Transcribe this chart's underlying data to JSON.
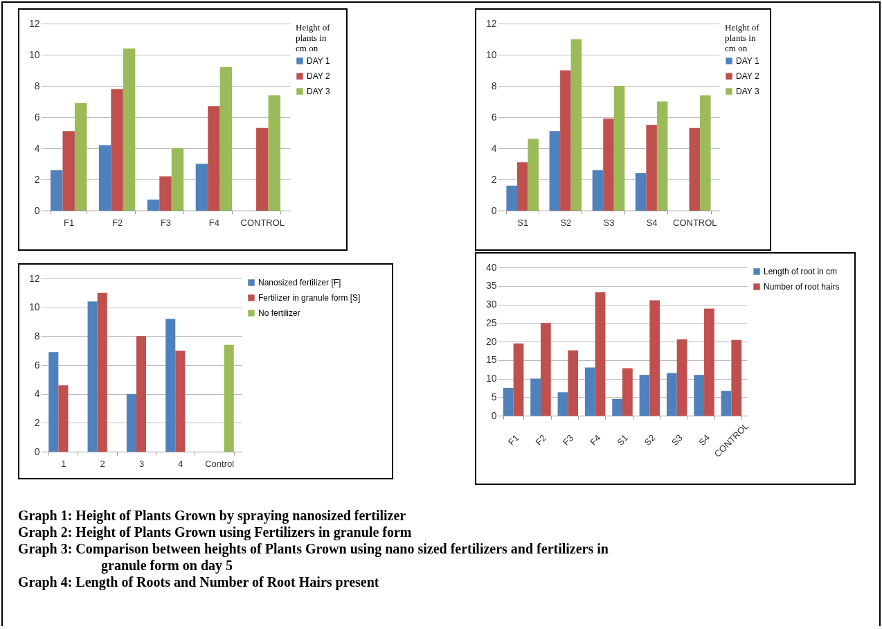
{
  "chart_data": [
    {
      "type": "bar",
      "categories": [
        "F1",
        "F2",
        "F3",
        "F4",
        "CONTROL"
      ],
      "legend_title": "Height of plants in cm on",
      "legend": "right",
      "grid": "y",
      "ylim": [
        0,
        12
      ],
      "yticks": [
        0,
        2,
        4,
        6,
        8,
        10,
        12
      ],
      "series": [
        {
          "name": "DAY 1",
          "color": "#4f81bd",
          "values": [
            2.6,
            4.2,
            0.7,
            3.0,
            null
          ]
        },
        {
          "name": "DAY 2",
          "color": "#c0504d",
          "values": [
            5.1,
            7.8,
            2.2,
            6.7,
            5.3
          ]
        },
        {
          "name": "DAY 3",
          "color": "#9bbb59",
          "values": [
            6.9,
            10.4,
            4.0,
            9.2,
            7.4
          ]
        }
      ],
      "annotations": [
        "Graph 1: Height of Plants Grown by spraying nanosized fertilizer"
      ]
    },
    {
      "type": "bar",
      "categories": [
        "S1",
        "S2",
        "S3",
        "S4",
        "CONTROL"
      ],
      "legend_title": "Height of plants in cm on",
      "legend": "right",
      "grid": "y",
      "ylim": [
        0,
        12
      ],
      "yticks": [
        0,
        2,
        4,
        6,
        8,
        10,
        12
      ],
      "series": [
        {
          "name": "DAY 1",
          "color": "#4f81bd",
          "values": [
            1.6,
            5.1,
            2.6,
            2.4,
            null
          ]
        },
        {
          "name": "DAY 2",
          "color": "#c0504d",
          "values": [
            3.1,
            9.0,
            5.9,
            5.5,
            5.3
          ]
        },
        {
          "name": "DAY 3",
          "color": "#9bbb59",
          "values": [
            4.6,
            11.0,
            8.0,
            7.0,
            7.4
          ]
        }
      ],
      "annotations": [
        "Graph 2: Height of Plants Grown using Fertilizers in granule form"
      ]
    },
    {
      "type": "bar",
      "categories": [
        "1",
        "2",
        "3",
        "4",
        "Control"
      ],
      "legend": "right",
      "grid": "y",
      "ylim": [
        0,
        12
      ],
      "yticks": [
        0,
        2,
        4,
        6,
        8,
        10,
        12
      ],
      "series": [
        {
          "name": "Nanosized fertilizer [F]",
          "color": "#4f81bd",
          "values": [
            6.9,
            10.4,
            4.0,
            9.2,
            null
          ]
        },
        {
          "name": "Fertilizer in granule form [S]",
          "color": "#c0504d",
          "values": [
            4.6,
            11.0,
            8.0,
            7.0,
            null
          ]
        },
        {
          "name": "No fertilizer",
          "color": "#9bbb59",
          "values": [
            null,
            null,
            null,
            null,
            7.4
          ]
        }
      ],
      "annotations": [
        "Graph 3: Comparison between heights of Plants Grown using nano sized fertilizers and fertilizers in granule form on day 5"
      ]
    },
    {
      "type": "bar",
      "categories": [
        "F1",
        "F2",
        "F3",
        "F4",
        "S1",
        "S2",
        "S3",
        "S4",
        "CONTROL"
      ],
      "legend": "right",
      "grid": "y",
      "ylim": [
        0,
        40
      ],
      "yticks": [
        0,
        5,
        10,
        15,
        20,
        25,
        30,
        35,
        40
      ],
      "series": [
        {
          "name": "Length of root in cm",
          "color": "#4f81bd",
          "values": [
            7.5,
            10,
            6.3,
            13,
            4.5,
            11,
            11.5,
            11,
            6.7
          ]
        },
        {
          "name": "Number of root hairs",
          "color": "#c0504d",
          "values": [
            19.5,
            25,
            17.6,
            33.3,
            12.8,
            31.1,
            20.6,
            28.9,
            20.4
          ]
        }
      ],
      "annotations": [
        "Graph 4: Length of Roots and Number of Root Hairs present"
      ]
    }
  ]
}
